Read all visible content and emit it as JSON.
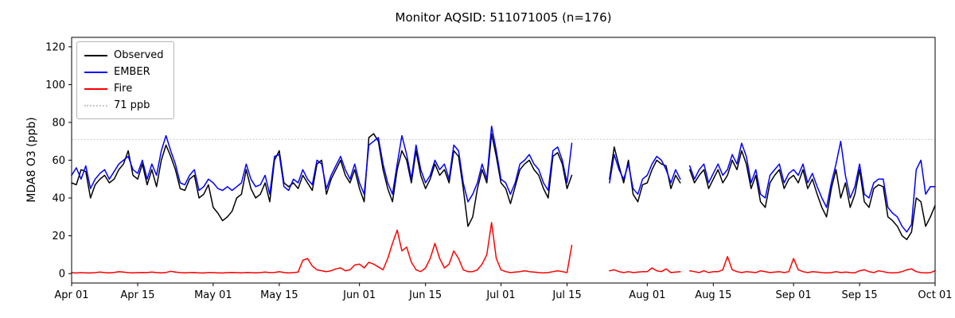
{
  "chart_data": {
    "type": "line",
    "title": "Monitor AQSID: 511071005 (n=176)",
    "xlabel": "",
    "ylabel": "MDA8 O3 (ppb)",
    "ylim": [
      -5,
      125
    ],
    "yticks": [
      0,
      20,
      40,
      60,
      80,
      100,
      120
    ],
    "x_start": "Apr 01",
    "x_end": "Oct 01",
    "n_days": 184,
    "x_tick_days": [
      0,
      14,
      30,
      44,
      61,
      75,
      91,
      105,
      122,
      136,
      153,
      167,
      183
    ],
    "x_tick_labels": [
      "Apr 01",
      "Apr 15",
      "May 01",
      "May 15",
      "Jun 01",
      "Jun 15",
      "Jul 01",
      "Jul 15",
      "Aug 01",
      "Aug 15",
      "Sep 01",
      "Sep 15",
      "Oct 01"
    ],
    "grid": false,
    "legend_position": "upper left",
    "threshold": {
      "label": "71 ppb",
      "value": 71,
      "color": "#c8c8c8",
      "style": "dotted"
    },
    "series": [
      {
        "name": "Observed",
        "color": "#000000",
        "values": [
          48,
          47,
          55,
          54,
          40,
          47,
          50,
          52,
          48,
          50,
          55,
          58,
          65,
          52,
          50,
          58,
          47,
          55,
          46,
          60,
          68,
          62,
          55,
          45,
          44,
          50,
          52,
          40,
          42,
          47,
          35,
          32,
          28,
          30,
          33,
          40,
          42,
          55,
          45,
          40,
          42,
          48,
          38,
          60,
          65,
          48,
          46,
          48,
          45,
          52,
          48,
          44,
          58,
          60,
          42,
          50,
          55,
          60,
          52,
          48,
          55,
          45,
          38,
          72,
          74,
          70,
          55,
          45,
          38,
          55,
          65,
          60,
          48,
          65,
          52,
          45,
          50,
          58,
          52,
          55,
          48,
          65,
          62,
          45,
          25,
          30,
          45,
          55,
          48,
          74,
          62,
          48,
          45,
          37,
          46,
          55,
          58,
          60,
          55,
          52,
          45,
          40,
          62,
          64,
          58,
          45,
          52,
          null,
          null,
          null,
          null,
          null,
          null,
          null,
          50,
          67,
          57,
          48,
          60,
          42,
          38,
          47,
          48,
          55,
          60,
          58,
          57,
          45,
          52,
          48,
          null,
          55,
          48,
          52,
          55,
          45,
          50,
          55,
          48,
          52,
          60,
          55,
          65,
          58,
          45,
          52,
          38,
          35,
          48,
          52,
          55,
          45,
          50,
          52,
          48,
          55,
          45,
          50,
          42,
          35,
          30,
          45,
          55,
          40,
          48,
          35,
          42,
          55,
          38,
          35,
          45,
          47,
          46,
          30,
          28,
          25,
          20,
          18,
          22,
          40,
          38,
          25,
          30,
          36
        ]
      },
      {
        "name": "EMBER",
        "color": "#0000ff",
        "values": [
          52,
          56,
          50,
          57,
          45,
          50,
          53,
          55,
          50,
          54,
          58,
          60,
          62,
          55,
          53,
          60,
          50,
          58,
          52,
          65,
          73,
          65,
          58,
          48,
          47,
          52,
          55,
          44,
          46,
          50,
          48,
          45,
          44,
          46,
          44,
          46,
          48,
          58,
          50,
          46,
          47,
          52,
          42,
          62,
          63,
          46,
          44,
          50,
          48,
          55,
          50,
          47,
          60,
          58,
          45,
          52,
          57,
          62,
          55,
          50,
          58,
          48,
          42,
          68,
          70,
          72,
          58,
          48,
          42,
          58,
          73,
          63,
          50,
          68,
          55,
          48,
          52,
          60,
          55,
          58,
          50,
          68,
          65,
          48,
          38,
          42,
          48,
          58,
          50,
          78,
          65,
          50,
          48,
          42,
          48,
          58,
          60,
          63,
          58,
          55,
          48,
          44,
          65,
          67,
          60,
          48,
          69,
          null,
          null,
          null,
          null,
          null,
          null,
          null,
          48,
          63,
          55,
          50,
          58,
          45,
          42,
          50,
          52,
          58,
          62,
          60,
          55,
          48,
          55,
          50,
          null,
          57,
          50,
          55,
          58,
          48,
          53,
          58,
          52,
          55,
          63,
          58,
          69,
          62,
          48,
          55,
          42,
          40,
          52,
          55,
          58,
          48,
          53,
          55,
          52,
          58,
          48,
          53,
          46,
          40,
          35,
          48,
          58,
          70,
          52,
          40,
          46,
          58,
          42,
          40,
          48,
          50,
          50,
          35,
          32,
          30,
          25,
          22,
          26,
          55,
          60,
          42,
          46,
          46
        ]
      },
      {
        "name": "Fire",
        "color": "#ff0000",
        "values": [
          0.5,
          0.3,
          0.5,
          0.4,
          0.3,
          0.5,
          0.8,
          0.5,
          0.4,
          0.6,
          1,
          0.8,
          0.5,
          0.4,
          0.5,
          0.6,
          0.5,
          0.8,
          0.5,
          0.4,
          0.6,
          1.2,
          0.8,
          0.5,
          0.4,
          0.5,
          0.6,
          0.4,
          0.3,
          0.5,
          0.5,
          0.4,
          0.3,
          0.5,
          0.6,
          0.5,
          0.4,
          0.6,
          0.5,
          0.4,
          0.5,
          0.8,
          0.5,
          0.6,
          1,
          0.5,
          0.4,
          0.5,
          0.8,
          7,
          8,
          4,
          2,
          1.5,
          1,
          1.5,
          2.5,
          3,
          1.5,
          2,
          4.5,
          5,
          3,
          6,
          5,
          3.5,
          2,
          8,
          16,
          23,
          12,
          14,
          6,
          2,
          1,
          3,
          8,
          16,
          8,
          3,
          5,
          12,
          8,
          2,
          1,
          1,
          2,
          5,
          10,
          27,
          8,
          2,
          1,
          0.5,
          0.8,
          1,
          1.5,
          1,
          0.8,
          0.5,
          0.4,
          0.5,
          1,
          1.5,
          1,
          0.5,
          15,
          null,
          null,
          null,
          null,
          null,
          null,
          null,
          1.5,
          2,
          1,
          0.5,
          1,
          0.5,
          0.8,
          1,
          1,
          3,
          1.5,
          1,
          2.5,
          0.5,
          0.8,
          1,
          null,
          1.5,
          1,
          0.5,
          1.5,
          0.5,
          1,
          1,
          2,
          9,
          2,
          1,
          0.5,
          1,
          0.8,
          0.5,
          1.5,
          1,
          0.5,
          0.8,
          1,
          0.5,
          1,
          8,
          2,
          1,
          0.5,
          1,
          0.8,
          0.5,
          0.4,
          0.5,
          1,
          0.5,
          0.8,
          0.5,
          0.4,
          1.5,
          2,
          1,
          0.5,
          1.5,
          1,
          0.5,
          0.4,
          0.5,
          1,
          2,
          2.5,
          1,
          0.5,
          0.4,
          0.5,
          1.5
        ]
      }
    ]
  }
}
